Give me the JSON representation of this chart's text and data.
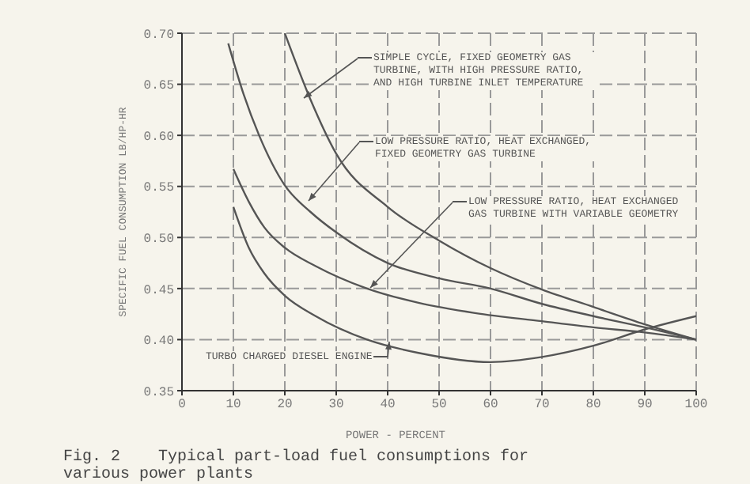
{
  "chart_data": {
    "type": "line",
    "title": "Fig. 2    Typical part-load fuel consumptions for\nvarious power plants",
    "xlabel": "POWER - PERCENT",
    "ylabel": "SPECIFIC FUEL CONSUMPTION LB/HP-HR",
    "xlim": [
      0,
      100
    ],
    "xticks": [
      0,
      10,
      20,
      30,
      40,
      50,
      60,
      70,
      80,
      90,
      100
    ],
    "ylim": [
      0.35,
      0.7
    ],
    "yticks": [
      {
        "value": 0.35,
        "label": "0.35"
      },
      {
        "value": 0.4,
        "label": "0.40"
      },
      {
        "value": 0.45,
        "label": "0.45"
      },
      {
        "value": 0.5,
        "label": "0.50"
      },
      {
        "value": 0.55,
        "label": "0.55"
      },
      {
        "value": 0.6,
        "label": "0.60"
      },
      {
        "value": 0.65,
        "label": "0.65"
      },
      {
        "value": 0.7,
        "label": "0.70"
      }
    ],
    "grid": true,
    "legend": "top right",
    "marker": "none",
    "line_style": "solid",
    "series": [
      {
        "name": "SIMPLE CYCLE, FIXED GEOMETRY GAS TURBINE, WITH HIGH PRESSURE RATIO, AND HIGH TURBINE INLET TEMPERATURE",
        "color": "#555555",
        "x": [
          20,
          25,
          30,
          40,
          50,
          60,
          70,
          80,
          90,
          100
        ],
        "values": [
          0.7,
          0.635,
          0.582,
          0.53,
          0.497,
          0.47,
          0.449,
          0.432,
          0.415,
          0.4
        ]
      },
      {
        "name": "LOW PRESSURE RATIO, HEAT EXCHANGED, FIXED GEOMETRY GAS TURBINE",
        "color": "#555555",
        "x": [
          9,
          12,
          15,
          20,
          25,
          30,
          40,
          50,
          60,
          70,
          80,
          90,
          100
        ],
        "values": [
          0.69,
          0.64,
          0.6,
          0.551,
          0.525,
          0.505,
          0.475,
          0.46,
          0.45,
          0.435,
          0.423,
          0.412,
          0.4
        ]
      },
      {
        "name": "LOW PRESSURE RATIO, HEAT EXCHANGED GAS TURBINE WITH VARIABLE GEOMETRY",
        "color": "#555555",
        "x": [
          10,
          13,
          16,
          20,
          26,
          36,
          46,
          57,
          70,
          80,
          90,
          100
        ],
        "values": [
          0.567,
          0.535,
          0.51,
          0.49,
          0.472,
          0.45,
          0.436,
          0.426,
          0.418,
          0.412,
          0.407,
          0.4
        ]
      },
      {
        "name": "TURBO CHARGED DIESEL ENGINE",
        "color": "#555555",
        "x": [
          10,
          13,
          16,
          20,
          26,
          36,
          46,
          60,
          70,
          80,
          90,
          100
        ],
        "values": [
          0.53,
          0.49,
          0.465,
          0.443,
          0.423,
          0.4,
          0.387,
          0.378,
          0.383,
          0.394,
          0.41,
          0.423
        ]
      }
    ]
  }
}
